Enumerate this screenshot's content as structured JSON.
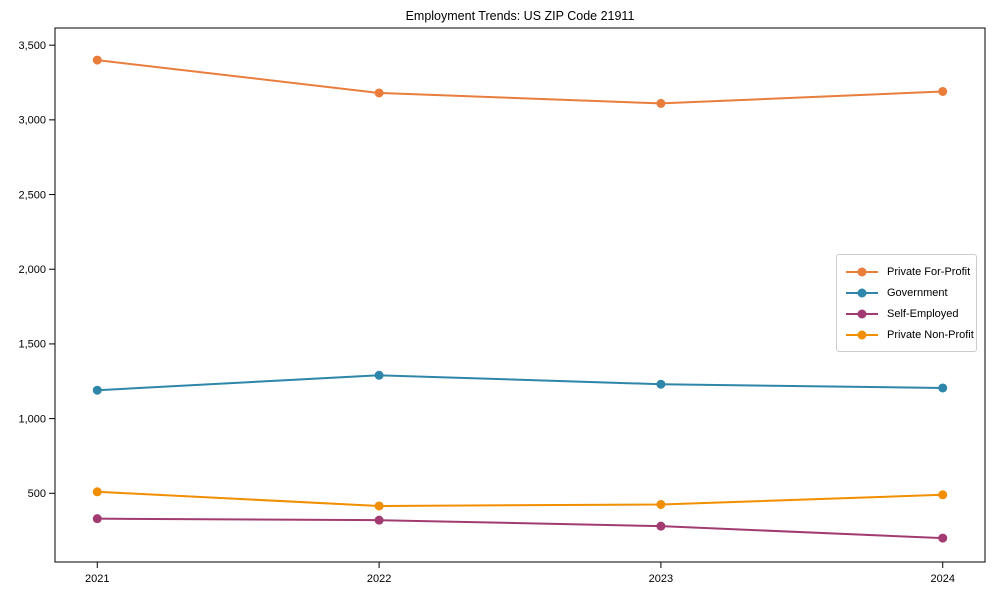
{
  "chart_data": {
    "type": "line",
    "title": "Employment Trends: US ZIP Code 21911",
    "xlabel": "",
    "ylabel": "",
    "x": [
      2021,
      2022,
      2023,
      2024
    ],
    "x_tick_labels": [
      "2021",
      "2022",
      "2023",
      "2024"
    ],
    "y_ticks": [
      500,
      1000,
      1500,
      2000,
      2500,
      3000,
      3500
    ],
    "y_tick_labels": [
      "500",
      "1,000",
      "1,500",
      "2,000",
      "2,500",
      "3,000",
      "3,500"
    ],
    "xlim": [
      2020.85,
      2024.15
    ],
    "ylim": [
      40,
      3615
    ],
    "grid": false,
    "legend_position": "center right",
    "marker": "circle",
    "series": [
      {
        "name": "Private For-Profit",
        "color": "#e87d3c",
        "values": [
          3400,
          3180,
          3110,
          3190
        ]
      },
      {
        "name": "Government",
        "color": "#2e86ab",
        "values": [
          1190,
          1290,
          1230,
          1205
        ]
      },
      {
        "name": "Self-Employed",
        "color": "#a23b72",
        "values": [
          330,
          320,
          280,
          200
        ]
      },
      {
        "name": "Private Non-Profit",
        "color": "#f18f01",
        "values": [
          510,
          415,
          425,
          490
        ]
      }
    ]
  }
}
